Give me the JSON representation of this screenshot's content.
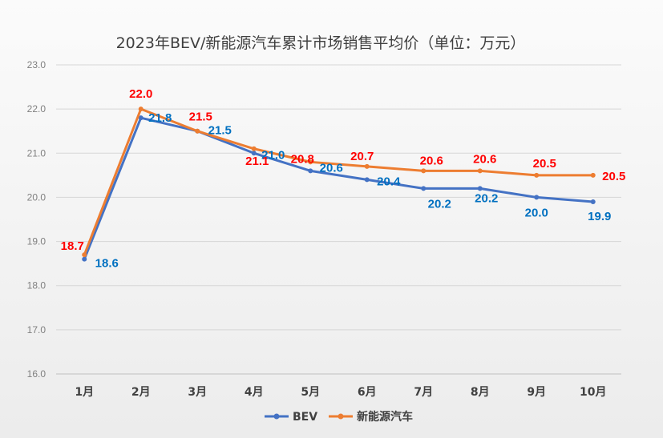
{
  "chart_data": {
    "type": "line",
    "title": "2023年BEV/新能源汽车累计市场销售平均价（单位：万元）",
    "categories": [
      "1月",
      "2月",
      "3月",
      "4月",
      "5月",
      "6月",
      "7月",
      "8月",
      "9月",
      "10月"
    ],
    "series": [
      {
        "name": "BEV",
        "color": "#4472c4",
        "label_color": "#0070c0",
        "values": [
          18.6,
          21.8,
          21.5,
          21.0,
          20.6,
          20.4,
          20.2,
          20.2,
          20.0,
          19.9
        ],
        "labels": [
          "18.6",
          "21.8",
          "21.5",
          "21.0",
          "20.6",
          "20.4",
          "20.2",
          "20.2",
          "20.0",
          "19.9"
        ]
      },
      {
        "name": "新能源汽车",
        "color": "#ed7d31",
        "label_color": "#ff0000",
        "values": [
          18.7,
          22.0,
          21.5,
          21.1,
          20.8,
          20.7,
          20.6,
          20.6,
          20.5,
          20.5
        ],
        "labels": [
          "18.7",
          "22.0",
          "21.5",
          "21.1",
          "20.8",
          "20.7",
          "20.6",
          "20.6",
          "20.5",
          "20.5"
        ]
      }
    ],
    "ylim": [
      16.0,
      23.0
    ],
    "yticks": [
      "16.0",
      "17.0",
      "18.0",
      "19.0",
      "20.0",
      "21.0",
      "22.0",
      "23.0"
    ],
    "grid": true,
    "legend_position": "bottom"
  }
}
